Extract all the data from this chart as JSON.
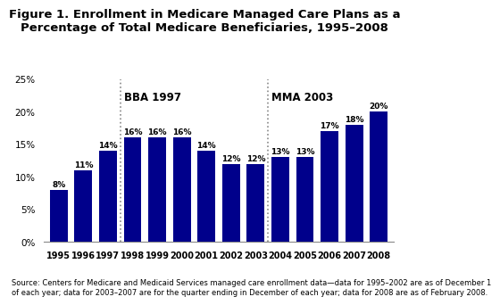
{
  "title": "Figure 1. Enrollment in Medicare Managed Care Plans as a\nPercentage of Total Medicare Beneficiaries, 1995–2008",
  "years": [
    1995,
    1996,
    1997,
    1998,
    1999,
    2000,
    2001,
    2002,
    2003,
    2004,
    2005,
    2006,
    2007,
    2008
  ],
  "values": [
    8,
    11,
    14,
    16,
    16,
    16,
    14,
    12,
    12,
    13,
    13,
    17,
    18,
    20
  ],
  "labels": [
    "8%",
    "11%",
    "14%",
    "16%",
    "16%",
    "16%",
    "14%",
    "12%",
    "12%",
    "13%",
    "13%",
    "17%",
    "18%",
    "20%"
  ],
  "bar_color": "#00008B",
  "bba_line_after_index": 2,
  "mma_line_after_index": 8,
  "bba_label": "BBA 1997",
  "mma_label": "MMA 2003",
  "ylim": [
    0,
    25
  ],
  "yticks": [
    0,
    5,
    10,
    15,
    20,
    25
  ],
  "ytick_labels": [
    "0%",
    "5%",
    "10%",
    "15%",
    "20%",
    "25%"
  ],
  "source_text": "Source: Centers for Medicare and Medicaid Services managed care enrollment data—data for 1995–2002 are as of December 1\nof each year; data for 2003–2007 are for the quarter ending in December of each year; data for 2008 are as of February 2008.",
  "background_color": "#ffffff",
  "title_fontsize": 9.5,
  "bar_label_fontsize": 6.5,
  "annotation_fontsize": 8.5,
  "xtick_fontsize": 7,
  "ytick_fontsize": 7.5,
  "source_fontsize": 6.0
}
